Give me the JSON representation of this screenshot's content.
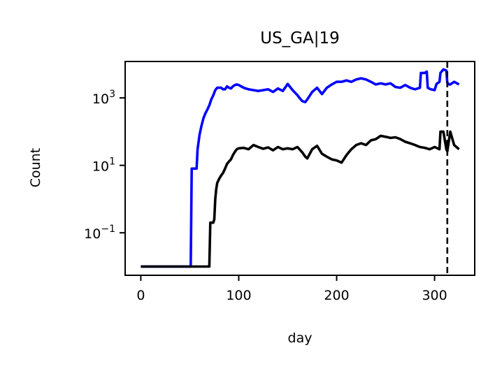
{
  "chart_data": {
    "type": "line",
    "title": "US_GA|19",
    "xlabel": "day",
    "ylabel": "Count",
    "xlim": [
      -16,
      341
    ],
    "ylim": [
      0.0055,
      12000
    ],
    "yscale": "log",
    "grid": false,
    "x_ticks": [
      {
        "value": 0,
        "label": "0"
      },
      {
        "value": 100,
        "label": "100"
      },
      {
        "value": 200,
        "label": "200"
      },
      {
        "value": 300,
        "label": "300"
      }
    ],
    "y_ticks": [
      {
        "value": 1000,
        "base": "10",
        "exp": "3"
      },
      {
        "value": 10,
        "base": "10",
        "exp": "1"
      },
      {
        "value": 0.1,
        "base": "10",
        "exp": "−1"
      }
    ],
    "vline": {
      "x": 313,
      "style": "dashed",
      "color": "#000000"
    },
    "series": [
      {
        "color": "#0000ff",
        "x": [
          0,
          51,
          52,
          56,
          57,
          58,
          60,
          62,
          64,
          66,
          68,
          70,
          72,
          74,
          76,
          78,
          80,
          82,
          84,
          86,
          88,
          90,
          92,
          94,
          96,
          98,
          100,
          105,
          110,
          115,
          120,
          125,
          130,
          135,
          140,
          145,
          150,
          155,
          160,
          162,
          165,
          168,
          170,
          175,
          180,
          185,
          190,
          195,
          200,
          205,
          210,
          215,
          220,
          225,
          230,
          235,
          240,
          245,
          250,
          255,
          260,
          265,
          270,
          275,
          280,
          285,
          286,
          290,
          292,
          293,
          296,
          300,
          302,
          305,
          306,
          309,
          312,
          313,
          315,
          316,
          320,
          325
        ],
        "y": [
          0.01,
          0.01,
          8,
          8,
          8,
          30,
          80,
          150,
          250,
          350,
          450,
          600,
          900,
          1200,
          1700,
          2000,
          2000,
          2000,
          1800,
          1800,
          2200,
          2000,
          1900,
          2200,
          2400,
          2500,
          2400,
          2000,
          1800,
          1700,
          1600,
          1700,
          1800,
          1500,
          1900,
          1600,
          2600,
          1700,
          1200,
          1000,
          800,
          750,
          900,
          1500,
          2000,
          1300,
          2000,
          2500,
          3000,
          3000,
          3300,
          3000,
          3500,
          3800,
          3500,
          3000,
          2500,
          2700,
          2500,
          2700,
          2100,
          2000,
          2400,
          2000,
          1800,
          2000,
          5500,
          5500,
          6000,
          2000,
          1800,
          1700,
          2600,
          3000,
          5500,
          7000,
          6500,
          2800,
          2500,
          2500,
          3000,
          2500
        ]
      },
      {
        "color": "#000000",
        "x": [
          0,
          70,
          71,
          73,
          74,
          75,
          76,
          77,
          78,
          80,
          82,
          84,
          86,
          88,
          90,
          92,
          94,
          96,
          98,
          100,
          105,
          110,
          115,
          120,
          125,
          130,
          135,
          140,
          145,
          150,
          155,
          160,
          165,
          168,
          170,
          175,
          180,
          185,
          190,
          195,
          200,
          205,
          210,
          215,
          220,
          225,
          230,
          235,
          240,
          245,
          250,
          255,
          260,
          265,
          270,
          275,
          280,
          285,
          290,
          295,
          300,
          305,
          306,
          309,
          312,
          313,
          316,
          320,
          325
        ],
        "y": [
          0.01,
          0.01,
          0.2,
          0.2,
          0.2,
          0.25,
          1,
          2,
          3,
          4,
          5,
          6,
          8,
          11,
          13,
          15,
          20,
          25,
          30,
          32,
          33,
          30,
          40,
          35,
          31,
          34,
          28,
          35,
          30,
          32,
          30,
          35,
          24,
          18,
          16,
          30,
          38,
          22,
          18,
          15,
          14,
          12,
          20,
          30,
          40,
          45,
          40,
          55,
          60,
          75,
          70,
          65,
          68,
          60,
          50,
          45,
          40,
          35,
          33,
          30,
          35,
          30,
          100,
          100,
          30,
          26,
          100,
          40,
          30
        ]
      }
    ]
  }
}
